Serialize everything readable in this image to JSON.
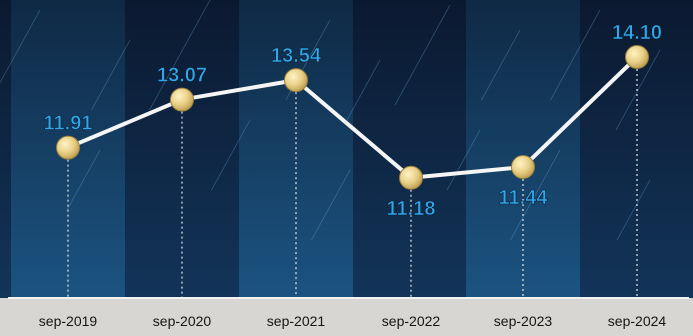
{
  "chart_data": {
    "type": "line",
    "categories": [
      "sep-2019",
      "sep-2020",
      "sep-2021",
      "sep-2022",
      "sep-2023",
      "sep-2024"
    ],
    "values": [
      11.91,
      13.07,
      13.54,
      11.18,
      11.44,
      14.1
    ],
    "value_labels": [
      "11.91",
      "13.07",
      "13.54",
      "11.18",
      "11.44",
      "14.10"
    ],
    "label_position": [
      "above",
      "above",
      "above",
      "below",
      "below",
      "above"
    ],
    "ylim": [
      9.0,
      14.8
    ],
    "grid": false,
    "legend": "none",
    "colors": {
      "background_dark": "#0a1a2c",
      "column_top": "#102c49",
      "column_bottom": "#1b5381",
      "line": "#f4f5f4",
      "marker": "#e9d38f",
      "value_label": "#2ea8ea",
      "tick_label": "#151515",
      "axis": "#f2f2f2",
      "footer": "#d7d6d2"
    }
  }
}
